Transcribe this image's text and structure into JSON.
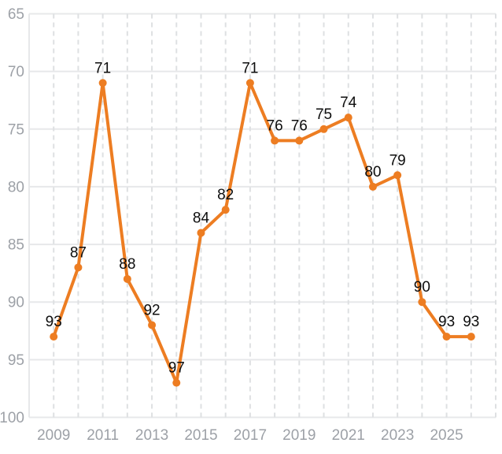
{
  "chart_data": {
    "type": "line",
    "x": [
      2009,
      2010,
      2011,
      2012,
      2013,
      2014,
      2015,
      2016,
      2017,
      2018,
      2019,
      2020,
      2021,
      2022,
      2023,
      2024,
      2025,
      2026
    ],
    "values": [
      93,
      87,
      71,
      88,
      92,
      97,
      84,
      82,
      71,
      76,
      76,
      75,
      74,
      80,
      79,
      90,
      93,
      93
    ],
    "point_labels": [
      "93",
      "87",
      "71",
      "88",
      "92",
      "97",
      "84",
      "82",
      "71",
      "76",
      "76",
      "75",
      "74",
      "80",
      "79",
      "90",
      "93",
      "93"
    ],
    "title": "",
    "xlabel": "",
    "ylabel": "",
    "y_axis": {
      "min": 65,
      "max": 100,
      "inverted": true,
      "ticks": [
        65,
        70,
        75,
        80,
        85,
        90,
        95,
        100
      ]
    },
    "x_axis": {
      "ticks": [
        2009,
        2011,
        2013,
        2015,
        2017,
        2019,
        2021,
        2023,
        2025
      ],
      "xlim": [
        2008,
        2027
      ],
      "gridline_years_start": 2009,
      "gridline_years_end": 2027
    },
    "grid": {
      "horizontal": "solid",
      "vertical": "dashed"
    },
    "legend": "none",
    "colors": {
      "line": "#ED7D22",
      "point": "#ED7D22",
      "data_label": "#0D0D0D",
      "axis_label": "#9DA1A7",
      "solid_gridline": "#E7E8EA",
      "dashed_gridline": "#DEE0E2",
      "axis_border": "#E7E8EA",
      "background": "#FFFFFF"
    }
  }
}
